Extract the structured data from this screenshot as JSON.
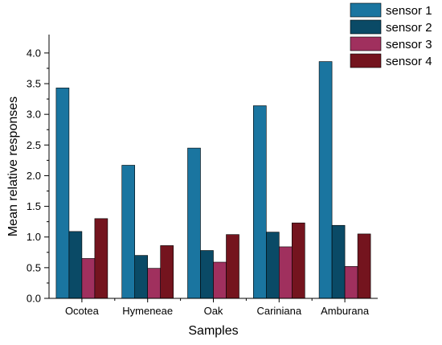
{
  "chart_data": {
    "type": "bar",
    "categories": [
      "Ocotea",
      "Hymeneae",
      "Oak",
      "Cariniana",
      "Amburana"
    ],
    "series": [
      {
        "name": "sensor 1",
        "color": "#1A75A0",
        "values": [
          3.43,
          2.17,
          2.45,
          3.14,
          3.86
        ]
      },
      {
        "name": "sensor 2",
        "color": "#0A4A66",
        "values": [
          1.09,
          0.7,
          0.78,
          1.08,
          1.19
        ]
      },
      {
        "name": "sensor 3",
        "color": "#A0305E",
        "values": [
          0.65,
          0.49,
          0.59,
          0.84,
          0.52
        ]
      },
      {
        "name": "sensor 4",
        "color": "#74141E",
        "values": [
          1.3,
          0.86,
          1.04,
          1.23,
          1.05
        ]
      }
    ],
    "xlabel": "Samples",
    "ylabel": "Mean relative responses",
    "ylim": [
      0,
      4.3
    ],
    "yticks": [
      "0.0",
      "0.5",
      "1.0",
      "1.5",
      "2.0",
      "2.5",
      "3.0",
      "3.5",
      "4.0"
    ],
    "grid": false,
    "legend_position": "top-right"
  }
}
